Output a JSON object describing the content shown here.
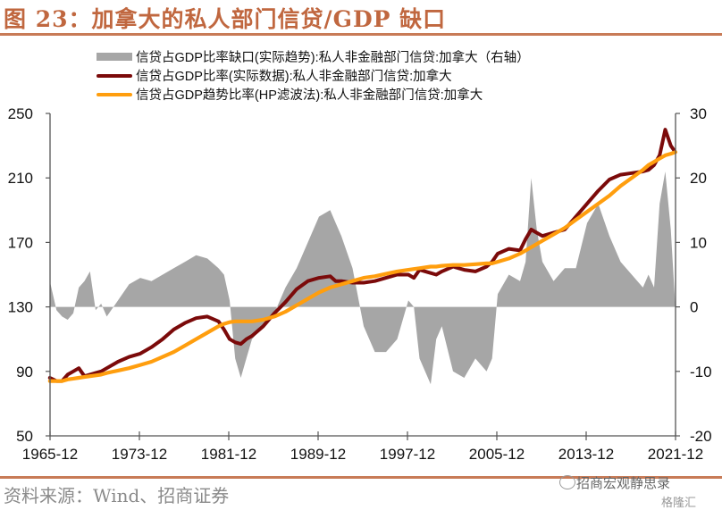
{
  "header": {
    "title": "图 23：加拿大的私人部门信贷/GDP 缺口"
  },
  "footer": {
    "source": "资料来源：Wind、招商证券",
    "watermark": "招商宏观静思录",
    "watermark2": "格隆汇"
  },
  "chart_data": {
    "type": "line",
    "title": "图 23：加拿大的私人部门信贷/GDP 缺口",
    "legend_position": "top",
    "x_ticks": [
      "1965-12",
      "1973-12",
      "1981-12",
      "1989-12",
      "1997-12",
      "2005-12",
      "2013-12",
      "2021-12"
    ],
    "y_left": {
      "ticks": [
        "250",
        "210",
        "170",
        "130",
        "90",
        "50"
      ],
      "range": [
        50,
        250
      ]
    },
    "y_right": {
      "ticks": [
        "30",
        "20",
        "10",
        "0",
        "-10",
        "-20"
      ],
      "range": [
        -20,
        30
      ]
    },
    "grid": false,
    "x": [
      1965.9,
      1966.5,
      1967.0,
      1967.5,
      1968.0,
      1968.5,
      1969.0,
      1969.5,
      1970.0,
      1970.5,
      1971.0,
      1972.0,
      1973.0,
      1974.0,
      1975.0,
      1976.0,
      1977.0,
      1978.0,
      1979.0,
      1980.0,
      1981.0,
      1981.5,
      1982.0,
      1982.5,
      1983.0,
      1983.5,
      1984.0,
      1985.0,
      1986.0,
      1987.0,
      1988.0,
      1989.0,
      1990.0,
      1991.0,
      1991.5,
      1992.0,
      1993.0,
      1994.0,
      1995.0,
      1996.0,
      1997.0,
      1998.0,
      1998.5,
      1999.0,
      2000.0,
      2000.5,
      2001.0,
      2002.0,
      2003.0,
      2004.0,
      2005.0,
      2005.5,
      2006.0,
      2007.0,
      2008.0,
      2008.5,
      2009.0,
      2009.5,
      2010.0,
      2011.0,
      2012.0,
      2013.0,
      2014.0,
      2015.0,
      2016.0,
      2017.0,
      2018.0,
      2019.0,
      2019.5,
      2020.0,
      2020.5,
      2021.0,
      2021.5,
      2021.9
    ],
    "series": [
      {
        "name": "信贷占GDP比率缺口(实际趋势):私人非金融部门信贷:加拿大（右轴）",
        "axis": "right",
        "style": "area",
        "color": "#a6a6a6",
        "values": [
          4,
          -0.5,
          -1.5,
          -2,
          -1,
          3,
          4,
          5.5,
          -0.5,
          0.5,
          -1.5,
          1,
          3.5,
          4.5,
          4,
          5,
          6,
          7,
          8,
          7.5,
          6,
          5,
          1,
          -8,
          -11,
          -8,
          -5,
          -3,
          -1,
          3,
          6,
          10,
          14,
          15,
          13,
          11,
          6,
          -3,
          -7,
          -7,
          -5,
          1,
          0,
          -8,
          -12,
          -5,
          -3,
          -10,
          -11,
          -8,
          -10,
          -8,
          2,
          5,
          4,
          7,
          20,
          12,
          7,
          4,
          6,
          6,
          13,
          16,
          11,
          7,
          5,
          3,
          5,
          3,
          16,
          21,
          12,
          0
        ]
      },
      {
        "name": "信贷占GDP比率(实际数据):私人非金融部门信贷:加拿大",
        "axis": "left",
        "style": "line",
        "color": "#7b0a0a",
        "values": [
          86,
          84,
          84,
          88,
          90,
          92,
          87,
          88,
          89,
          90,
          92,
          96,
          99,
          101,
          105,
          110,
          116,
          120,
          123,
          124,
          121,
          116,
          110,
          108,
          107,
          110,
          112,
          118,
          126,
          133,
          141,
          146,
          148,
          149,
          146,
          146,
          145,
          145,
          146,
          148,
          150,
          150,
          148,
          153,
          151,
          150,
          152,
          155,
          153,
          152,
          155,
          158,
          163,
          166,
          165,
          172,
          178,
          176,
          174,
          176,
          178,
          186,
          194,
          202,
          209,
          212,
          213,
          214,
          215,
          218,
          224,
          240,
          230,
          226
        ]
      },
      {
        "name": "信贷占GDP趋势比率(HP滤波法):私人非金融部门信贷:加拿大",
        "axis": "left",
        "style": "line",
        "color": "#ff9e0e",
        "values": [
          84,
          84,
          84,
          85,
          85.5,
          86,
          86.5,
          87,
          87.5,
          88,
          89,
          90.5,
          92,
          94,
          96,
          99,
          102,
          106,
          110,
          114,
          118,
          119.5,
          120.5,
          121,
          121,
          121,
          121,
          122,
          124,
          127,
          131,
          135,
          139,
          142,
          143,
          144,
          146,
          148,
          149,
          150.5,
          152,
          153,
          153.5,
          154,
          155,
          155,
          155.5,
          156,
          156,
          156.5,
          157,
          157,
          158,
          160,
          163,
          165,
          167,
          169,
          171,
          175,
          179,
          184,
          189,
          194,
          199,
          205,
          210,
          215,
          218,
          220,
          222,
          224,
          225,
          226
        ]
      }
    ]
  }
}
